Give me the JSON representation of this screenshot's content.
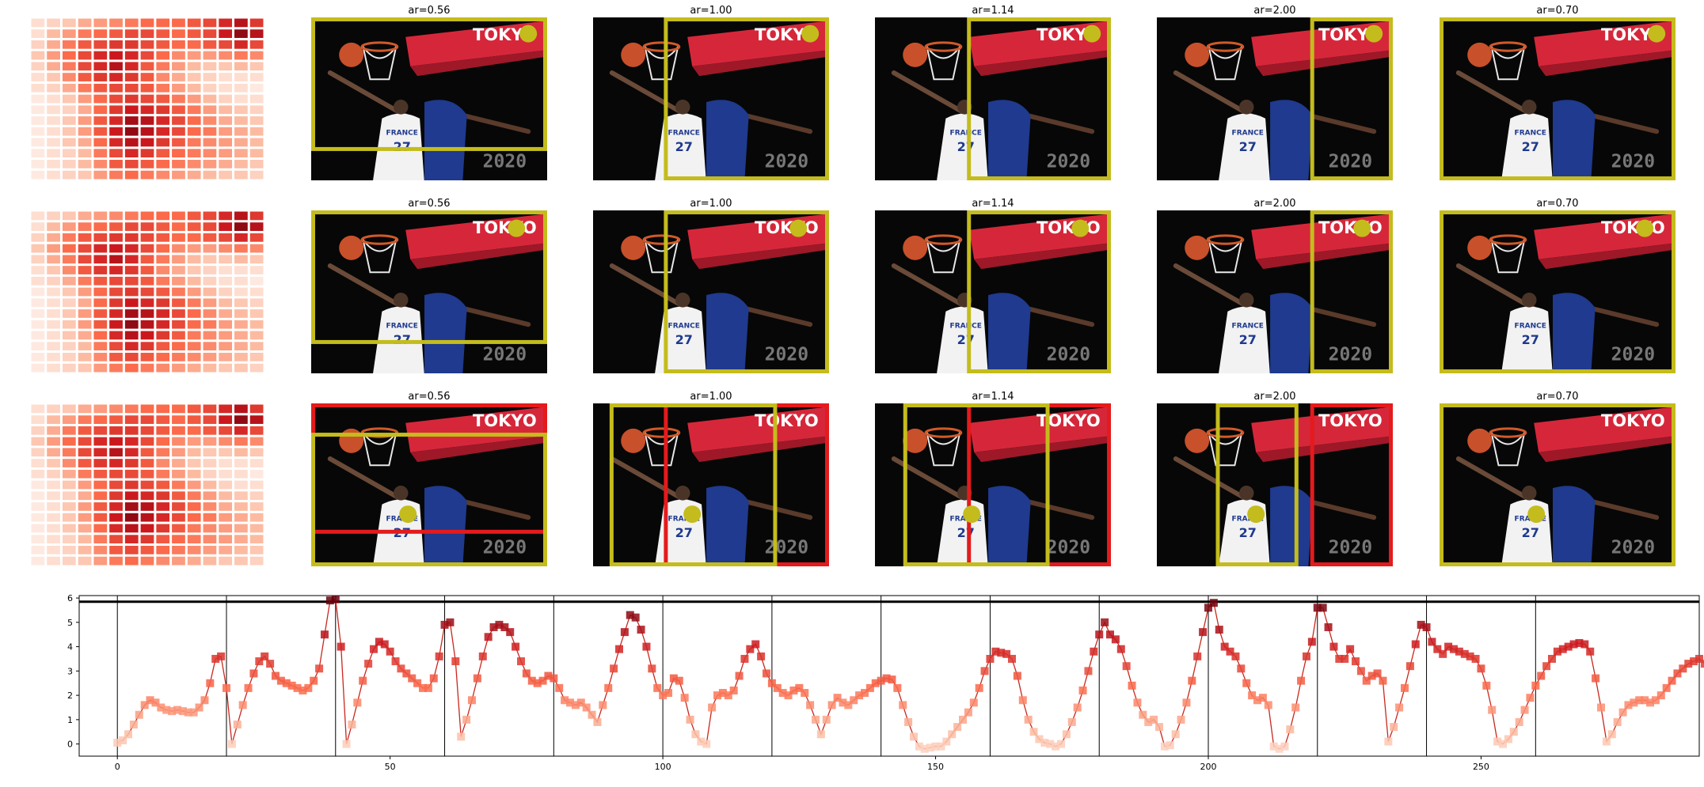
{
  "chart_data": [
    {
      "type": "grid-figure",
      "rows": 3,
      "row_labels": [],
      "panel_titles": [
        "ar=0.56",
        "ar=1.00",
        "ar=1.14",
        "ar=2.00",
        "ar=0.70"
      ],
      "photo": {
        "arena_brand": "TOKYO",
        "jersey_team": "FRANCE",
        "jersey_number": "27",
        "scoreboard_text": "2020"
      },
      "colors": {
        "crop_box": "#c4bc1c",
        "alt_box": "#e41a1c",
        "dot": "#c4bc1c"
      },
      "heatmap": {
        "type": "heatmap",
        "cols": 15,
        "rows": 15,
        "values": [
          [
            0.1,
            0.15,
            0.2,
            0.3,
            0.35,
            0.4,
            0.45,
            0.5,
            0.5,
            0.5,
            0.55,
            0.6,
            0.7,
            0.8,
            0.65
          ],
          [
            0.1,
            0.25,
            0.35,
            0.45,
            0.5,
            0.55,
            0.6,
            0.6,
            0.55,
            0.5,
            0.55,
            0.6,
            0.75,
            0.9,
            0.8
          ],
          [
            0.15,
            0.3,
            0.45,
            0.55,
            0.6,
            0.65,
            0.65,
            0.6,
            0.55,
            0.5,
            0.5,
            0.55,
            0.6,
            0.7,
            0.6
          ],
          [
            0.2,
            0.35,
            0.5,
            0.6,
            0.7,
            0.75,
            0.7,
            0.6,
            0.5,
            0.4,
            0.35,
            0.35,
            0.4,
            0.45,
            0.4
          ],
          [
            0.15,
            0.3,
            0.45,
            0.6,
            0.7,
            0.8,
            0.7,
            0.55,
            0.45,
            0.35,
            0.25,
            0.2,
            0.2,
            0.25,
            0.2
          ],
          [
            0.1,
            0.2,
            0.4,
            0.55,
            0.65,
            0.7,
            0.65,
            0.55,
            0.4,
            0.3,
            0.2,
            0.15,
            0.1,
            0.1,
            0.1
          ],
          [
            0.1,
            0.15,
            0.3,
            0.45,
            0.55,
            0.6,
            0.6,
            0.55,
            0.45,
            0.35,
            0.25,
            0.15,
            0.1,
            0.1,
            0.05
          ],
          [
            0.05,
            0.1,
            0.2,
            0.35,
            0.5,
            0.6,
            0.65,
            0.6,
            0.55,
            0.45,
            0.35,
            0.25,
            0.15,
            0.1,
            0.1
          ],
          [
            0.05,
            0.1,
            0.15,
            0.3,
            0.5,
            0.65,
            0.75,
            0.7,
            0.65,
            0.55,
            0.45,
            0.35,
            0.25,
            0.2,
            0.15
          ],
          [
            0.05,
            0.1,
            0.2,
            0.35,
            0.55,
            0.7,
            0.85,
            0.8,
            0.7,
            0.6,
            0.5,
            0.4,
            0.3,
            0.25,
            0.2
          ],
          [
            0.05,
            0.1,
            0.2,
            0.35,
            0.55,
            0.75,
            0.9,
            0.8,
            0.7,
            0.6,
            0.5,
            0.45,
            0.35,
            0.3,
            0.25
          ],
          [
            0.05,
            0.1,
            0.2,
            0.3,
            0.5,
            0.7,
            0.8,
            0.75,
            0.65,
            0.55,
            0.45,
            0.4,
            0.35,
            0.3,
            0.25
          ],
          [
            0.05,
            0.1,
            0.15,
            0.25,
            0.45,
            0.6,
            0.7,
            0.65,
            0.55,
            0.5,
            0.45,
            0.4,
            0.35,
            0.3,
            0.25
          ],
          [
            0.05,
            0.1,
            0.15,
            0.25,
            0.4,
            0.55,
            0.6,
            0.55,
            0.5,
            0.45,
            0.4,
            0.35,
            0.3,
            0.25,
            0.2
          ],
          [
            0.05,
            0.1,
            0.15,
            0.2,
            0.35,
            0.45,
            0.5,
            0.45,
            0.4,
            0.35,
            0.3,
            0.25,
            0.2,
            0.2,
            0.15
          ]
        ]
      },
      "panels": [
        [
          {
            "title_index": 0,
            "crops": [
              {
                "x0": 0.0,
                "y0": 0.0,
                "x1": 1.0,
                "y1": 0.82,
                "color": "crop_box"
              }
            ],
            "dot": [
              0.92,
              0.1
            ]
          },
          {
            "title_index": 1,
            "crops": [
              {
                "x0": 0.3,
                "y0": 0.0,
                "x1": 1.0,
                "y1": 1.0,
                "color": "crop_box"
              }
            ],
            "dot": [
              0.92,
              0.1
            ]
          },
          {
            "title_index": 2,
            "crops": [
              {
                "x0": 0.39,
                "y0": 0.0,
                "x1": 1.0,
                "y1": 1.0,
                "color": "crop_box"
              }
            ],
            "dot": [
              0.92,
              0.1
            ]
          },
          {
            "title_index": 3,
            "crops": [
              {
                "x0": 0.65,
                "y0": 0.0,
                "x1": 1.0,
                "y1": 1.0,
                "color": "crop_box"
              }
            ],
            "dot": [
              0.92,
              0.1
            ]
          },
          {
            "title_index": 4,
            "crops": [
              {
                "x0": 0.0,
                "y0": 0.0,
                "x1": 1.0,
                "y1": 1.0,
                "color": "crop_box"
              }
            ],
            "dot": [
              0.92,
              0.1
            ]
          }
        ],
        [
          {
            "title_index": 0,
            "crops": [
              {
                "x0": 0.0,
                "y0": 0.0,
                "x1": 1.0,
                "y1": 0.82,
                "color": "crop_box"
              }
            ],
            "dot": [
              0.87,
              0.11
            ]
          },
          {
            "title_index": 1,
            "crops": [
              {
                "x0": 0.3,
                "y0": 0.0,
                "x1": 1.0,
                "y1": 1.0,
                "color": "crop_box"
              }
            ],
            "dot": [
              0.87,
              0.11
            ]
          },
          {
            "title_index": 2,
            "crops": [
              {
                "x0": 0.39,
                "y0": 0.0,
                "x1": 1.0,
                "y1": 1.0,
                "color": "crop_box"
              }
            ],
            "dot": [
              0.87,
              0.11
            ]
          },
          {
            "title_index": 3,
            "crops": [
              {
                "x0": 0.65,
                "y0": 0.0,
                "x1": 1.0,
                "y1": 1.0,
                "color": "crop_box"
              }
            ],
            "dot": [
              0.87,
              0.11
            ]
          },
          {
            "title_index": 4,
            "crops": [
              {
                "x0": 0.0,
                "y0": 0.0,
                "x1": 1.0,
                "y1": 1.0,
                "color": "crop_box"
              }
            ],
            "dot": [
              0.87,
              0.11
            ]
          }
        ],
        [
          {
            "title_index": 0,
            "crops": [
              {
                "x0": 0.0,
                "y0": 0.0,
                "x1": 1.0,
                "y1": 0.8,
                "color": "alt_box"
              },
              {
                "x0": 0.0,
                "y0": 0.18,
                "x1": 1.0,
                "y1": 1.0,
                "color": "crop_box"
              }
            ],
            "dot": [
              0.41,
              0.68
            ]
          },
          {
            "title_index": 1,
            "crops": [
              {
                "x0": 0.3,
                "y0": 0.0,
                "x1": 1.0,
                "y1": 1.0,
                "color": "alt_box"
              },
              {
                "x0": 0.07,
                "y0": 0.0,
                "x1": 0.78,
                "y1": 1.0,
                "color": "crop_box"
              }
            ],
            "dot": [
              0.42,
              0.68
            ]
          },
          {
            "title_index": 2,
            "crops": [
              {
                "x0": 0.39,
                "y0": 0.0,
                "x1": 1.0,
                "y1": 1.0,
                "color": "alt_box"
              },
              {
                "x0": 0.12,
                "y0": 0.0,
                "x1": 0.74,
                "y1": 1.0,
                "color": "crop_box"
              }
            ],
            "dot": [
              0.41,
              0.68
            ]
          },
          {
            "title_index": 3,
            "crops": [
              {
                "x0": 0.65,
                "y0": 0.0,
                "x1": 1.0,
                "y1": 1.0,
                "color": "alt_box"
              },
              {
                "x0": 0.25,
                "y0": 0.0,
                "x1": 0.6,
                "y1": 1.0,
                "color": "crop_box"
              }
            ],
            "dot": [
              0.42,
              0.68
            ]
          },
          {
            "title_index": 4,
            "crops": [
              {
                "x0": 0.0,
                "y0": 0.0,
                "x1": 1.0,
                "y1": 1.0,
                "color": "crop_box"
              }
            ],
            "dot": [
              0.41,
              0.68
            ]
          }
        ]
      ]
    },
    {
      "type": "line",
      "title": "",
      "xlabel": "",
      "ylabel": "",
      "xlim": [
        -7,
        290
      ],
      "ylim": [
        -0.5,
        6.1
      ],
      "xticks": [
        0,
        50,
        100,
        150,
        200,
        250
      ],
      "yticks": [
        0,
        1,
        2,
        3,
        4,
        5,
        6
      ],
      "grid": false,
      "threshold_line": 5.85,
      "segment_boundaries": [
        0,
        20,
        40,
        60,
        80,
        100,
        120,
        140,
        160,
        180,
        200,
        220,
        240,
        260
      ],
      "x_start": 0,
      "x_step": 1,
      "series": [
        {
          "values": [
            0.05,
            0.15,
            0.4,
            0.8,
            1.2,
            1.6,
            1.8,
            1.7,
            1.5,
            1.4,
            1.35,
            1.4,
            1.35,
            1.3,
            1.3,
            1.5,
            1.8,
            2.5,
            3.5,
            3.6,
            2.3,
            0.0,
            0.8,
            1.6,
            2.3,
            2.9,
            3.4,
            3.6,
            3.3,
            2.8,
            2.6,
            2.5,
            2.4,
            2.3,
            2.2,
            2.3,
            2.6,
            3.1,
            4.5,
            5.9,
            5.95,
            4.0,
            0.0,
            0.8,
            1.7,
            2.6,
            3.3,
            3.9,
            4.2,
            4.1,
            3.8,
            3.4,
            3.1,
            2.9,
            2.7,
            2.5,
            2.3,
            2.3,
            2.7,
            3.6,
            4.9,
            5.0,
            3.4,
            0.3,
            1.0,
            1.8,
            2.7,
            3.6,
            4.4,
            4.8,
            4.9,
            4.8,
            4.6,
            4.0,
            3.4,
            2.9,
            2.6,
            2.5,
            2.6,
            2.8,
            2.7,
            2.3,
            1.8,
            1.7,
            1.6,
            1.7,
            1.5,
            1.2,
            0.9,
            1.6,
            2.3,
            3.1,
            3.9,
            4.6,
            5.3,
            5.2,
            4.7,
            4.0,
            3.1,
            2.3,
            2.0,
            2.1,
            2.7,
            2.6,
            1.9,
            1.0,
            0.4,
            0.1,
            0.0,
            1.5,
            2.0,
            2.1,
            2.0,
            2.2,
            2.8,
            3.5,
            3.9,
            4.1,
            3.6,
            2.9,
            2.5,
            2.3,
            2.1,
            2.0,
            2.2,
            2.3,
            2.1,
            1.6,
            1.0,
            0.4,
            1.0,
            1.6,
            1.9,
            1.7,
            1.6,
            1.8,
            2.0,
            2.1,
            2.3,
            2.5,
            2.6,
            2.7,
            2.65,
            2.3,
            1.6,
            0.9,
            0.3,
            -0.1,
            -0.2,
            -0.15,
            -0.1,
            -0.1,
            0.1,
            0.4,
            0.7,
            1.0,
            1.3,
            1.7,
            2.3,
            3.0,
            3.5,
            3.8,
            3.75,
            3.7,
            3.5,
            2.8,
            1.8,
            1.0,
            0.5,
            0.2,
            0.05,
            0.0,
            -0.1,
            0.0,
            0.4,
            0.9,
            1.5,
            2.2,
            3.0,
            3.8,
            4.5,
            5.0,
            4.5,
            4.3,
            3.9,
            3.2,
            2.4,
            1.7,
            1.2,
            0.9,
            1.0,
            0.7,
            -0.1,
            -0.05,
            0.4,
            1.0,
            1.7,
            2.6,
            3.6,
            4.6,
            5.6,
            5.8,
            4.7,
            4.0,
            3.8,
            3.6,
            3.1,
            2.5,
            2.0,
            1.8,
            1.9,
            1.6,
            -0.1,
            -0.2,
            -0.1,
            0.6,
            1.5,
            2.6,
            3.6,
            4.2,
            5.6,
            5.6,
            4.8,
            4.0,
            3.5,
            3.5,
            3.9,
            3.4,
            3.0,
            2.6,
            2.8,
            2.9,
            2.6,
            0.1,
            0.7,
            1.5,
            2.3,
            3.2,
            4.1,
            4.9,
            4.8,
            4.2,
            3.9,
            3.7,
            4.0,
            3.9,
            3.8,
            3.7,
            3.6,
            3.5,
            3.1,
            2.4,
            1.4,
            0.1,
            0.0,
            0.2,
            0.5,
            0.9,
            1.4,
            1.9,
            2.4,
            2.8,
            3.2,
            3.5,
            3.8,
            3.9,
            4.0,
            4.1,
            4.15,
            4.1,
            3.8,
            2.7,
            1.5,
            0.1,
            0.4,
            0.9,
            1.3,
            1.6,
            1.7,
            1.8,
            1.8,
            1.7,
            1.8,
            2.0,
            2.3,
            2.6,
            2.9,
            3.1,
            3.3,
            3.4,
            3.5,
            3.3,
            2.6,
            1.6,
            1.0
          ]
        }
      ]
    }
  ]
}
